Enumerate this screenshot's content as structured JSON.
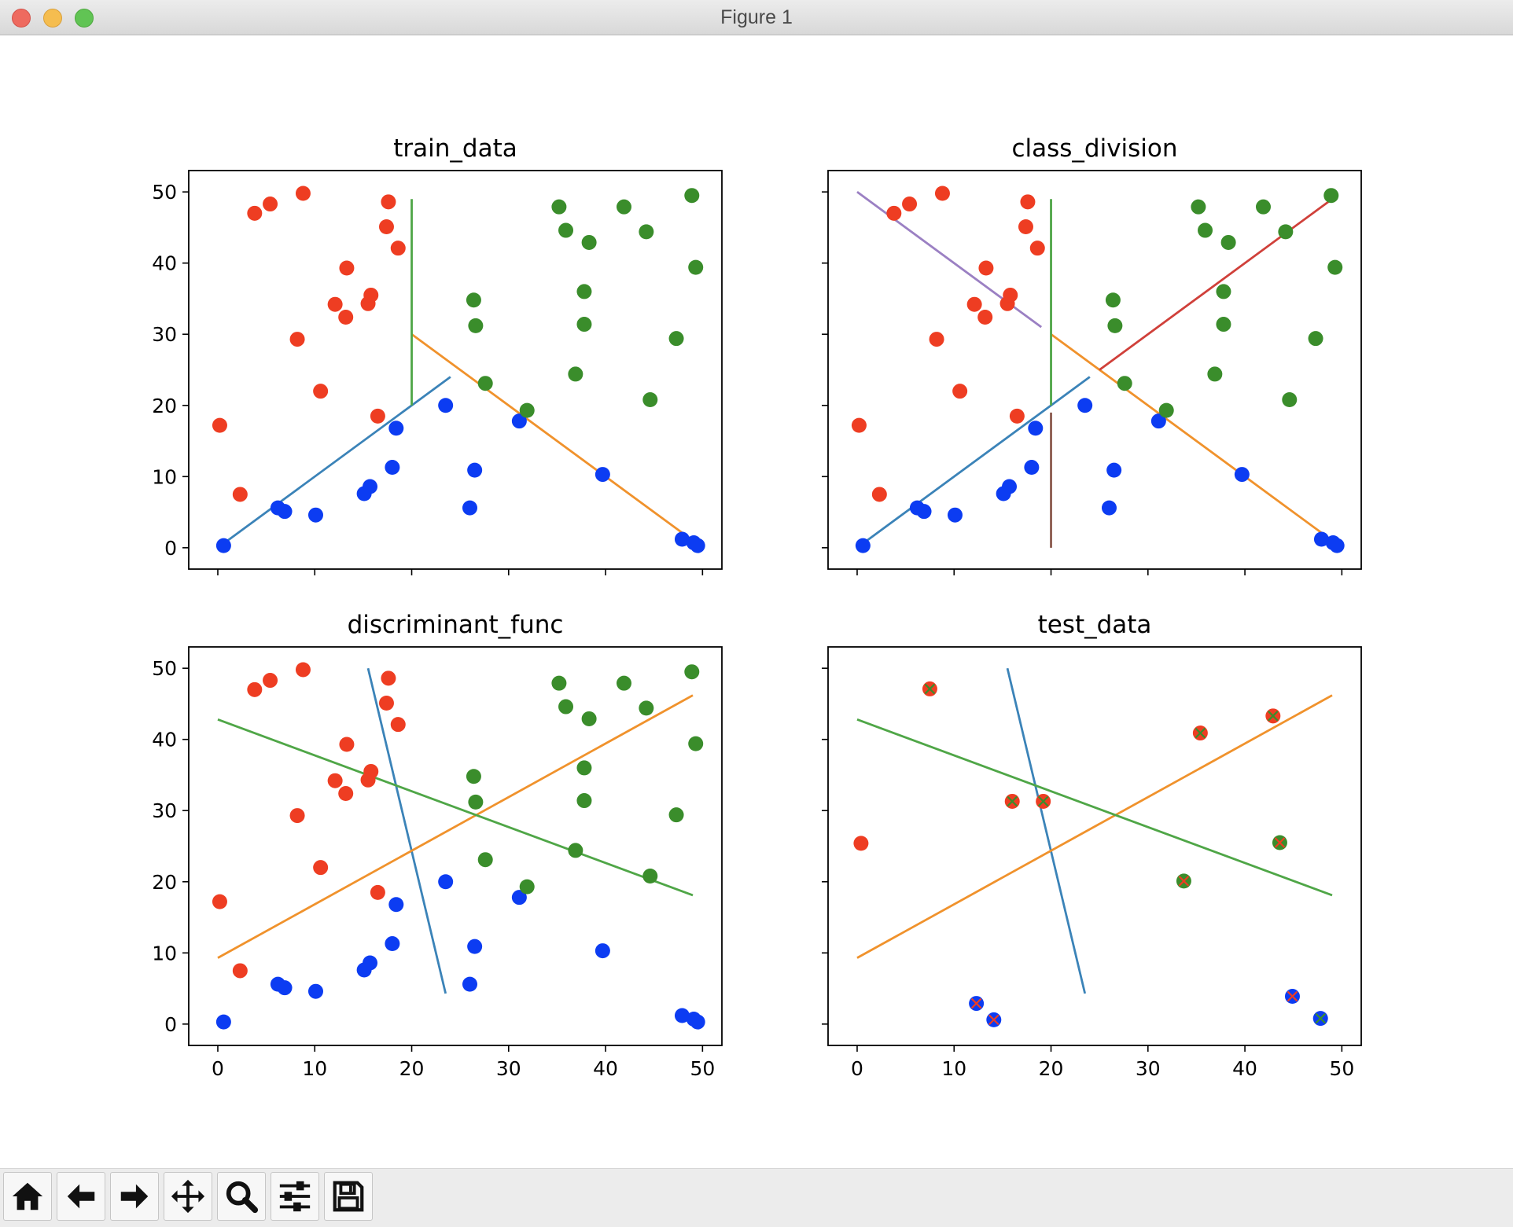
{
  "window": {
    "title": "Figure 1"
  },
  "toolbar": {
    "buttons": [
      {
        "name": "home-button",
        "icon": "home-icon"
      },
      {
        "name": "back-button",
        "icon": "arrow-left-icon"
      },
      {
        "name": "forward-button",
        "icon": "arrow-right-icon"
      },
      {
        "name": "pan-button",
        "icon": "move-icon"
      },
      {
        "name": "zoom-button",
        "icon": "magnifier-icon"
      },
      {
        "name": "configure-subplots-button",
        "icon": "sliders-icon"
      },
      {
        "name": "save-button",
        "icon": "floppy-disk-icon"
      }
    ]
  },
  "colors": {
    "red": "#ee3d22",
    "blue": "#0c3cf2",
    "green": "#3a8d2b",
    "line_blue": "#3b83b8",
    "line_orange": "#f0922c",
    "line_green": "#4fa647",
    "line_red": "#d0403a",
    "line_purple": "#9b80c3",
    "line_brown": "#8b5a4e"
  },
  "chart_data": [
    {
      "type": "scatter",
      "title": "train_data",
      "xlim": [
        -3,
        52
      ],
      "ylim": [
        -3,
        53
      ],
      "xticks": [
        0,
        10,
        20,
        30,
        40,
        50
      ],
      "yticks": [
        0,
        10,
        20,
        30,
        40,
        50
      ],
      "show_xticklabels": false,
      "show_yticklabels": true,
      "series": [
        {
          "color": "red",
          "points": [
            [
              0.2,
              17.2
            ],
            [
              2.3,
              7.5
            ],
            [
              3.8,
              47
            ],
            [
              5.4,
              48.3
            ],
            [
              8.2,
              29.3
            ],
            [
              8.8,
              49.8
            ],
            [
              10.6,
              22
            ],
            [
              12.1,
              34.2
            ],
            [
              13.3,
              39.3
            ],
            [
              13.2,
              32.4
            ],
            [
              15.5,
              34.3
            ],
            [
              15.8,
              35.5
            ],
            [
              16.5,
              18.5
            ],
            [
              17.4,
              45.1
            ],
            [
              17.6,
              48.6
            ],
            [
              18.6,
              42.1
            ]
          ]
        },
        {
          "color": "blue",
          "points": [
            [
              0.6,
              0.3
            ],
            [
              6.2,
              5.6
            ],
            [
              6.9,
              5.1
            ],
            [
              10.1,
              4.6
            ],
            [
              15.1,
              7.6
            ],
            [
              15.7,
              8.6
            ],
            [
              18.0,
              11.3
            ],
            [
              18.4,
              16.8
            ],
            [
              23.5,
              20
            ],
            [
              26.0,
              5.6
            ],
            [
              26.5,
              10.9
            ],
            [
              31.1,
              17.8
            ],
            [
              39.7,
              10.3
            ],
            [
              47.9,
              1.2
            ],
            [
              49.1,
              0.7
            ],
            [
              49.5,
              0.3
            ]
          ]
        },
        {
          "color": "green",
          "points": [
            [
              26.4,
              34.8
            ],
            [
              26.6,
              31.2
            ],
            [
              27.6,
              23.1
            ],
            [
              31.9,
              19.3
            ],
            [
              35.2,
              47.9
            ],
            [
              35.9,
              44.6
            ],
            [
              36.9,
              24.4
            ],
            [
              37.8,
              36
            ],
            [
              37.8,
              31.4
            ],
            [
              38.3,
              42.9
            ],
            [
              41.9,
              47.9
            ],
            [
              44.2,
              44.4
            ],
            [
              44.6,
              20.8
            ],
            [
              47.3,
              29.4
            ],
            [
              48.9,
              49.5
            ],
            [
              49.3,
              39.4
            ]
          ]
        }
      ],
      "lines": [
        {
          "color": "line_blue",
          "x": [
            0,
            24
          ],
          "y": [
            0,
            24
          ]
        },
        {
          "color": "line_orange",
          "x": [
            20,
            49
          ],
          "y": [
            30,
            1
          ]
        },
        {
          "color": "line_green",
          "x": [
            20,
            20
          ],
          "y": [
            20,
            49
          ]
        }
      ]
    },
    {
      "type": "scatter",
      "title": "class_division",
      "xlim": [
        -3,
        52
      ],
      "ylim": [
        -3,
        53
      ],
      "xticks": [
        0,
        10,
        20,
        30,
        40,
        50
      ],
      "yticks": [
        0,
        10,
        20,
        30,
        40,
        50
      ],
      "show_xticklabels": false,
      "show_yticklabels": false,
      "series": [
        {
          "color": "red",
          "points": [
            [
              0.2,
              17.2
            ],
            [
              2.3,
              7.5
            ],
            [
              3.8,
              47
            ],
            [
              5.4,
              48.3
            ],
            [
              8.2,
              29.3
            ],
            [
              8.8,
              49.8
            ],
            [
              10.6,
              22
            ],
            [
              12.1,
              34.2
            ],
            [
              13.3,
              39.3
            ],
            [
              13.2,
              32.4
            ],
            [
              15.5,
              34.3
            ],
            [
              15.8,
              35.5
            ],
            [
              16.5,
              18.5
            ],
            [
              17.4,
              45.1
            ],
            [
              17.6,
              48.6
            ],
            [
              18.6,
              42.1
            ]
          ]
        },
        {
          "color": "blue",
          "points": [
            [
              0.6,
              0.3
            ],
            [
              6.2,
              5.6
            ],
            [
              6.9,
              5.1
            ],
            [
              10.1,
              4.6
            ],
            [
              15.1,
              7.6
            ],
            [
              15.7,
              8.6
            ],
            [
              18.0,
              11.3
            ],
            [
              18.4,
              16.8
            ],
            [
              23.5,
              20
            ],
            [
              26.0,
              5.6
            ],
            [
              26.5,
              10.9
            ],
            [
              31.1,
              17.8
            ],
            [
              39.7,
              10.3
            ],
            [
              47.9,
              1.2
            ],
            [
              49.1,
              0.7
            ],
            [
              49.5,
              0.3
            ]
          ]
        },
        {
          "color": "green",
          "points": [
            [
              26.4,
              34.8
            ],
            [
              26.6,
              31.2
            ],
            [
              27.6,
              23.1
            ],
            [
              31.9,
              19.3
            ],
            [
              35.2,
              47.9
            ],
            [
              35.9,
              44.6
            ],
            [
              36.9,
              24.4
            ],
            [
              37.8,
              36
            ],
            [
              37.8,
              31.4
            ],
            [
              38.3,
              42.9
            ],
            [
              41.9,
              47.9
            ],
            [
              44.2,
              44.4
            ],
            [
              44.6,
              20.8
            ],
            [
              47.3,
              29.4
            ],
            [
              48.9,
              49.5
            ],
            [
              49.3,
              39.4
            ]
          ]
        }
      ],
      "lines": [
        {
          "color": "line_blue",
          "x": [
            0,
            24
          ],
          "y": [
            0,
            24
          ]
        },
        {
          "color": "line_orange",
          "x": [
            20,
            49
          ],
          "y": [
            30,
            1
          ]
        },
        {
          "color": "line_green",
          "x": [
            20,
            20
          ],
          "y": [
            20,
            49
          ]
        },
        {
          "color": "line_purple",
          "x": [
            0,
            19
          ],
          "y": [
            50,
            31
          ]
        },
        {
          "color": "line_red",
          "x": [
            25,
            49
          ],
          "y": [
            25,
            49
          ]
        },
        {
          "color": "line_brown",
          "x": [
            20,
            20
          ],
          "y": [
            0,
            19
          ]
        }
      ]
    },
    {
      "type": "scatter",
      "title": "discriminant_func",
      "xlim": [
        -3,
        52
      ],
      "ylim": [
        -3,
        53
      ],
      "xticks": [
        0,
        10,
        20,
        30,
        40,
        50
      ],
      "yticks": [
        0,
        10,
        20,
        30,
        40,
        50
      ],
      "show_xticklabels": true,
      "show_yticklabels": true,
      "series": [
        {
          "color": "red",
          "points": [
            [
              0.2,
              17.2
            ],
            [
              2.3,
              7.5
            ],
            [
              3.8,
              47
            ],
            [
              5.4,
              48.3
            ],
            [
              8.2,
              29.3
            ],
            [
              8.8,
              49.8
            ],
            [
              10.6,
              22
            ],
            [
              12.1,
              34.2
            ],
            [
              13.3,
              39.3
            ],
            [
              13.2,
              32.4
            ],
            [
              15.5,
              34.3
            ],
            [
              15.8,
              35.5
            ],
            [
              16.5,
              18.5
            ],
            [
              17.4,
              45.1
            ],
            [
              17.6,
              48.6
            ],
            [
              18.6,
              42.1
            ]
          ]
        },
        {
          "color": "blue",
          "points": [
            [
              0.6,
              0.3
            ],
            [
              6.2,
              5.6
            ],
            [
              6.9,
              5.1
            ],
            [
              10.1,
              4.6
            ],
            [
              15.1,
              7.6
            ],
            [
              15.7,
              8.6
            ],
            [
              18.0,
              11.3
            ],
            [
              18.4,
              16.8
            ],
            [
              23.5,
              20
            ],
            [
              26.0,
              5.6
            ],
            [
              26.5,
              10.9
            ],
            [
              31.1,
              17.8
            ],
            [
              39.7,
              10.3
            ],
            [
              47.9,
              1.2
            ],
            [
              49.1,
              0.7
            ],
            [
              49.5,
              0.3
            ]
          ]
        },
        {
          "color": "green",
          "points": [
            [
              26.4,
              34.8
            ],
            [
              26.6,
              31.2
            ],
            [
              27.6,
              23.1
            ],
            [
              31.9,
              19.3
            ],
            [
              35.2,
              47.9
            ],
            [
              35.9,
              44.6
            ],
            [
              36.9,
              24.4
            ],
            [
              37.8,
              36
            ],
            [
              37.8,
              31.4
            ],
            [
              38.3,
              42.9
            ],
            [
              41.9,
              47.9
            ],
            [
              44.2,
              44.4
            ],
            [
              44.6,
              20.8
            ],
            [
              47.3,
              29.4
            ],
            [
              48.9,
              49.5
            ],
            [
              49.3,
              39.4
            ]
          ]
        }
      ],
      "lines": [
        {
          "color": "line_blue",
          "x": [
            15.5,
            23.5
          ],
          "y": [
            50,
            4.3
          ]
        },
        {
          "color": "line_orange",
          "x": [
            0,
            49
          ],
          "y": [
            9.3,
            46.2
          ]
        },
        {
          "color": "line_green",
          "x": [
            0,
            49
          ],
          "y": [
            42.8,
            18.1
          ]
        }
      ]
    },
    {
      "type": "scatter",
      "title": "test_data",
      "xlim": [
        -3,
        52
      ],
      "ylim": [
        -3,
        53
      ],
      "xticks": [
        0,
        10,
        20,
        30,
        40,
        50
      ],
      "yticks": [
        0,
        10,
        20,
        30,
        40,
        50
      ],
      "show_xticklabels": true,
      "show_yticklabels": false,
      "series": [
        {
          "color": "red",
          "marker": "x",
          "marker_color": "green",
          "points": [
            [
              7.5,
              47.1
            ],
            [
              16.0,
              31.3
            ],
            [
              19.2,
              31.3
            ]
          ]
        },
        {
          "color": "red",
          "marker": "x",
          "marker_color": "red",
          "points": [
            [
              0.4,
              25.4
            ]
          ]
        },
        {
          "color": "red",
          "marker": "x",
          "marker_color": "green",
          "points": [
            [
              35.4,
              40.9
            ],
            [
              42.9,
              43.3
            ]
          ]
        },
        {
          "color": "green",
          "marker": "x",
          "marker_color": "red",
          "points": [
            [
              33.7,
              20.1
            ],
            [
              43.6,
              25.5
            ]
          ]
        },
        {
          "color": "blue",
          "marker": "x",
          "marker_color": "red",
          "points": [
            [
              12.3,
              2.9
            ],
            [
              14.1,
              0.6
            ],
            [
              44.9,
              3.9
            ]
          ]
        },
        {
          "color": "blue",
          "marker": "x",
          "marker_color": "green",
          "points": [
            [
              47.8,
              0.8
            ]
          ]
        }
      ],
      "lines": [
        {
          "color": "line_blue",
          "x": [
            15.5,
            23.5
          ],
          "y": [
            50,
            4.3
          ]
        },
        {
          "color": "line_orange",
          "x": [
            0,
            49
          ],
          "y": [
            9.3,
            46.2
          ]
        },
        {
          "color": "line_green",
          "x": [
            0,
            49
          ],
          "y": [
            42.8,
            18.1
          ]
        }
      ]
    }
  ]
}
